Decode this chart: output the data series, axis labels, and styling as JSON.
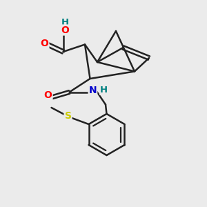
{
  "bg_color": "#ebebeb",
  "bond_color": "#222222",
  "O_color": "#ff0000",
  "H_color": "#008080",
  "N_color": "#0000cc",
  "S_color": "#cccc00",
  "lw": 1.8,
  "figsize": [
    3.0,
    3.0
  ],
  "dpi": 100,
  "xlim": [
    0,
    10
  ],
  "ylim": [
    0,
    10
  ]
}
